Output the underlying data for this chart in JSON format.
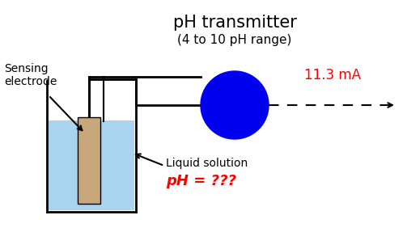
{
  "title_line1": "pH transmitter",
  "title_line2": "(4 to 10 pH range)",
  "title_fontsize": 15,
  "subtitle_fontsize": 11,
  "sensing_label": "Sensing\nelectrode",
  "liquid_label": "Liquid solution",
  "ph_label": "pH = ???",
  "current_label": "11.3 mA",
  "bg_color": "#ffffff",
  "tank_color": "#a8d4f0",
  "tank_edge_color": "#000000",
  "electrode_color": "#c8a87a",
  "circle_color": "#0000ee",
  "current_color": "#ff0000",
  "liquid_label_color": "#000000",
  "arrow_color": "#000000"
}
